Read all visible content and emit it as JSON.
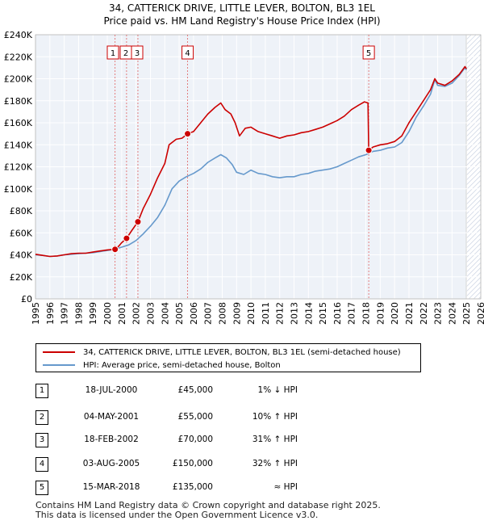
{
  "title_line1": "34, CATTERICK DRIVE, LITTLE LEVER, BOLTON, BL3 1EL",
  "title_line2": "Price paid vs. HM Land Registry's House Price Index (HPI)",
  "chart_data": {
    "type": "line",
    "title": "34, CATTERICK DRIVE, LITTLE LEVER, BOLTON, BL3 1EL — Price paid vs. HM Land Registry's House Price Index (HPI)",
    "xlim": [
      1995,
      2026
    ],
    "ylim": [
      0,
      240000
    ],
    "xticks": [
      1995,
      1996,
      1997,
      1998,
      1999,
      2000,
      2001,
      2002,
      2003,
      2004,
      2005,
      2006,
      2007,
      2008,
      2009,
      2010,
      2011,
      2012,
      2013,
      2014,
      2015,
      2016,
      2017,
      2018,
      2019,
      2020,
      2021,
      2022,
      2023,
      2024,
      2025,
      2026
    ],
    "yticks": [
      0,
      20000,
      40000,
      60000,
      80000,
      100000,
      120000,
      140000,
      160000,
      180000,
      200000,
      220000,
      240000
    ],
    "ytick_labels": [
      "£0",
      "£20K",
      "£40K",
      "£60K",
      "£80K",
      "£100K",
      "£120K",
      "£140K",
      "£160K",
      "£180K",
      "£200K",
      "£220K",
      "£240K"
    ],
    "grid": true,
    "forecast_start": 2025.0,
    "series": [
      {
        "name": "34, CATTERICK DRIVE, LITTLE LEVER, BOLTON, BL3 1EL (semi-detached house)",
        "color": "#cc0000",
        "points": [
          [
            1995.0,
            40500
          ],
          [
            1995.5,
            39500
          ],
          [
            1996.0,
            38500
          ],
          [
            1996.5,
            39000
          ],
          [
            1997.0,
            40000
          ],
          [
            1997.5,
            41000
          ],
          [
            1998.0,
            41500
          ],
          [
            1998.5,
            41500
          ],
          [
            1999.0,
            42500
          ],
          [
            1999.5,
            43500
          ],
          [
            2000.0,
            44500
          ],
          [
            2000.54,
            45000
          ],
          [
            2000.8,
            48000
          ],
          [
            2001.0,
            51000
          ],
          [
            2001.34,
            55000
          ],
          [
            2001.7,
            62000
          ],
          [
            2002.13,
            70000
          ],
          [
            2002.5,
            82000
          ],
          [
            2003.0,
            95000
          ],
          [
            2003.5,
            110000
          ],
          [
            2004.0,
            123000
          ],
          [
            2004.3,
            140000
          ],
          [
            2004.8,
            145000
          ],
          [
            2005.2,
            146000
          ],
          [
            2005.59,
            150000
          ],
          [
            2006.0,
            152000
          ],
          [
            2006.5,
            160000
          ],
          [
            2007.0,
            168000
          ],
          [
            2007.5,
            174000
          ],
          [
            2007.9,
            178000
          ],
          [
            2008.2,
            172000
          ],
          [
            2008.6,
            168000
          ],
          [
            2008.9,
            160000
          ],
          [
            2009.2,
            148000
          ],
          [
            2009.6,
            155000
          ],
          [
            2010.0,
            156000
          ],
          [
            2010.5,
            152000
          ],
          [
            2011.0,
            150000
          ],
          [
            2011.5,
            148000
          ],
          [
            2012.0,
            146000
          ],
          [
            2012.5,
            148000
          ],
          [
            2013.0,
            149000
          ],
          [
            2013.5,
            151000
          ],
          [
            2014.0,
            152000
          ],
          [
            2014.5,
            154000
          ],
          [
            2015.0,
            156000
          ],
          [
            2015.5,
            159000
          ],
          [
            2016.0,
            162000
          ],
          [
            2016.5,
            166000
          ],
          [
            2017.0,
            172000
          ],
          [
            2017.5,
            176000
          ],
          [
            2017.9,
            179000
          ],
          [
            2018.15,
            178000
          ],
          [
            2018.2,
            135000
          ],
          [
            2018.5,
            138000
          ],
          [
            2019.0,
            140000
          ],
          [
            2019.5,
            141000
          ],
          [
            2020.0,
            143000
          ],
          [
            2020.5,
            148000
          ],
          [
            2021.0,
            160000
          ],
          [
            2021.5,
            170000
          ],
          [
            2022.0,
            180000
          ],
          [
            2022.5,
            190000
          ],
          [
            2022.8,
            200000
          ],
          [
            2023.0,
            196000
          ],
          [
            2023.5,
            194000
          ],
          [
            2024.0,
            198000
          ],
          [
            2024.5,
            204000
          ],
          [
            2024.9,
            211000
          ],
          [
            2025.0,
            209000
          ]
        ]
      },
      {
        "name": "HPI: Average price, semi-detached house, Bolton",
        "color": "#6699cc",
        "points": [
          [
            1995.0,
            40000
          ],
          [
            1995.5,
            39500
          ],
          [
            1996.0,
            38500
          ],
          [
            1996.5,
            39000
          ],
          [
            1997.0,
            40000
          ],
          [
            1997.5,
            40500
          ],
          [
            1998.0,
            41000
          ],
          [
            1998.5,
            41500
          ],
          [
            1999.0,
            42000
          ],
          [
            1999.5,
            43000
          ],
          [
            2000.0,
            44000
          ],
          [
            2000.5,
            45000
          ],
          [
            2001.0,
            47000
          ],
          [
            2001.5,
            49000
          ],
          [
            2002.0,
            53000
          ],
          [
            2002.5,
            59000
          ],
          [
            2003.0,
            66000
          ],
          [
            2003.5,
            74000
          ],
          [
            2004.0,
            85000
          ],
          [
            2004.5,
            100000
          ],
          [
            2005.0,
            107000
          ],
          [
            2005.5,
            111000
          ],
          [
            2006.0,
            114000
          ],
          [
            2006.5,
            118000
          ],
          [
            2007.0,
            124000
          ],
          [
            2007.5,
            128000
          ],
          [
            2007.9,
            131000
          ],
          [
            2008.3,
            128000
          ],
          [
            2008.7,
            122000
          ],
          [
            2009.0,
            115000
          ],
          [
            2009.5,
            113000
          ],
          [
            2010.0,
            117000
          ],
          [
            2010.5,
            114000
          ],
          [
            2011.0,
            113000
          ],
          [
            2011.5,
            111000
          ],
          [
            2012.0,
            110000
          ],
          [
            2012.5,
            111000
          ],
          [
            2013.0,
            111000
          ],
          [
            2013.5,
            113000
          ],
          [
            2014.0,
            114000
          ],
          [
            2014.5,
            116000
          ],
          [
            2015.0,
            117000
          ],
          [
            2015.5,
            118000
          ],
          [
            2016.0,
            120000
          ],
          [
            2016.5,
            123000
          ],
          [
            2017.0,
            126000
          ],
          [
            2017.5,
            129000
          ],
          [
            2018.0,
            131000
          ],
          [
            2018.5,
            134000
          ],
          [
            2019.0,
            135000
          ],
          [
            2019.5,
            137000
          ],
          [
            2020.0,
            138000
          ],
          [
            2020.5,
            142000
          ],
          [
            2021.0,
            152000
          ],
          [
            2021.5,
            165000
          ],
          [
            2022.0,
            175000
          ],
          [
            2022.5,
            186000
          ],
          [
            2022.8,
            199000
          ],
          [
            2023.0,
            194000
          ],
          [
            2023.5,
            193000
          ],
          [
            2024.0,
            196000
          ],
          [
            2024.5,
            203000
          ],
          [
            2024.9,
            210000
          ],
          [
            2025.0,
            208000
          ]
        ]
      }
    ],
    "sales": [
      {
        "label": "1",
        "year": 2000.54,
        "price": 45000
      },
      {
        "label": "2",
        "year": 2001.34,
        "price": 55000
      },
      {
        "label": "3",
        "year": 2002.13,
        "price": 70000
      },
      {
        "label": "4",
        "year": 2005.59,
        "price": 150000
      },
      {
        "label": "5",
        "year": 2018.2,
        "price": 135000
      }
    ]
  },
  "legend": {
    "property": "34, CATTERICK DRIVE, LITTLE LEVER, BOLTON, BL3 1EL (semi-detached house)",
    "hpi": "HPI: Average price, semi-detached house, Bolton"
  },
  "transactions": [
    {
      "num": "1",
      "date": "18-JUL-2000",
      "price": "£45,000",
      "hpi": "1% ↓ HPI"
    },
    {
      "num": "2",
      "date": "04-MAY-2001",
      "price": "£55,000",
      "hpi": "10% ↑ HPI"
    },
    {
      "num": "3",
      "date": "18-FEB-2002",
      "price": "£70,000",
      "hpi": "31% ↑ HPI"
    },
    {
      "num": "4",
      "date": "03-AUG-2005",
      "price": "£150,000",
      "hpi": "32% ↑ HPI"
    },
    {
      "num": "5",
      "date": "15-MAR-2018",
      "price": "£135,000",
      "hpi": "≈ HPI"
    }
  ],
  "footer": {
    "line1": "Contains HM Land Registry data © Crown copyright and database right 2025.",
    "line2": "This data is licensed under the Open Government Licence v3.0."
  }
}
